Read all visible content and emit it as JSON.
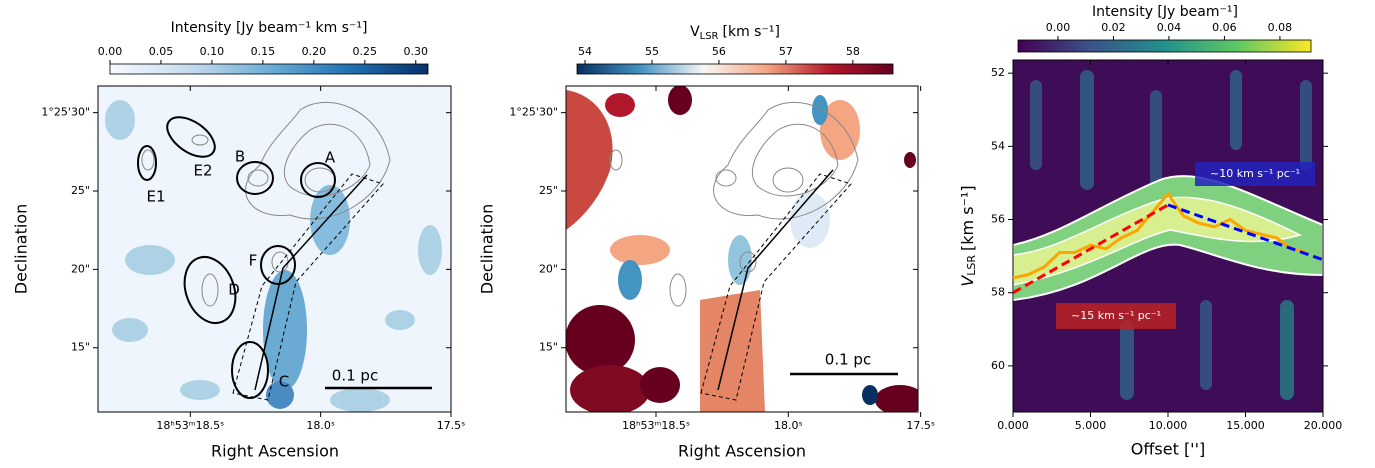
{
  "chart_data": [
    {
      "type": "map",
      "colorbar": {
        "label": "Intensity [Jy beam⁻¹ km s⁻¹]",
        "lim": [
          0,
          0.312
        ],
        "ticks": [
          {
            "value": 0,
            "label": "0.00"
          },
          {
            "value": 0.05,
            "label": "0.05"
          },
          {
            "value": 0.1,
            "label": "0.10"
          },
          {
            "value": 0.15,
            "label": "0.15"
          },
          {
            "value": 0.2,
            "label": "0.20"
          },
          {
            "value": 0.25,
            "label": "0.25"
          },
          {
            "value": 0.3,
            "label": "0.30"
          }
        ],
        "colormap": [
          "#f7fbff",
          "#c6dbef",
          "#6baed6",
          "#2171b5",
          "#08306b"
        ]
      },
      "xlabel": "Right Ascension",
      "ylabel": "Declination",
      "xlim": [
        18.854,
        17.5
      ],
      "ylim": [
        10.9,
        31.7
      ],
      "xticks": [
        {
          "value": 18.5,
          "label": "18ʰ53ᵐ18.5ˢ"
        },
        {
          "value": 18.0,
          "label": "18.0ˢ"
        },
        {
          "value": 17.5,
          "label": "17.5ˢ"
        }
      ],
      "yticks": [
        {
          "value": 30,
          "label": "1°25'30\""
        },
        {
          "value": 25,
          "label": "25\""
        },
        {
          "value": 20,
          "label": "20\""
        },
        {
          "value": 15,
          "label": "15\""
        }
      ],
      "annotations": [
        "A",
        "B",
        "C",
        "D",
        "E1",
        "E2",
        "F"
      ],
      "scalebar": "0.1 pc"
    },
    {
      "type": "map",
      "colorbar": {
        "label": {
          "symbol": "V",
          "subscript": "LSR",
          "unit": "[km s⁻¹]"
        },
        "lim": [
          53.88,
          58.6
        ],
        "ticks": [
          54,
          55,
          56,
          57,
          58
        ],
        "colormap": [
          "#053061",
          "#4393c3",
          "#f7f7f7",
          "#f4a582",
          "#b2182b",
          "#67001f"
        ]
      },
      "xlabel": "Right Ascension",
      "ylabel": "Declination",
      "xlim": [
        18.84,
        17.51
      ],
      "ylim": [
        10.9,
        31.7
      ],
      "xticks": [
        {
          "value": 18.5,
          "label": "18ʰ53ᵐ18.5ˢ"
        },
        {
          "value": 18.0,
          "label": "18.0ˢ"
        },
        {
          "value": 17.5,
          "label": "17.5ˢ"
        }
      ],
      "yticks": [
        {
          "value": 30,
          "label": "1°25'30\""
        },
        {
          "value": 25,
          "label": "25\""
        },
        {
          "value": 20,
          "label": "20\""
        },
        {
          "value": 15,
          "label": "15\""
        }
      ],
      "scalebar": "0.1 pc"
    },
    {
      "type": "line",
      "colorbar": {
        "label": "Intensity [Jy beam⁻¹]",
        "lim": [
          -0.0144,
          0.0912
        ],
        "ticks": [
          {
            "value": 0,
            "label": "0.00"
          },
          {
            "value": 0.02,
            "label": "0.02"
          },
          {
            "value": 0.04,
            "label": "0.04"
          },
          {
            "value": 0.06,
            "label": "0.06"
          },
          {
            "value": 0.08,
            "label": "0.08"
          }
        ],
        "colormap": [
          "#440154",
          "#3b528b",
          "#21918c",
          "#5ec962",
          "#fde725"
        ]
      },
      "xlabel": "Offset ['']",
      "ylabel": {
        "symbol": "V",
        "subscript": "LSR",
        "unit": "[km s⁻¹]"
      },
      "xlim": [
        0,
        20
      ],
      "ylim": [
        61.26,
        51.64
      ],
      "xticks": [
        {
          "value": 0,
          "label": "0.000"
        },
        {
          "value": 5,
          "label": "5.000"
        },
        {
          "value": 10,
          "label": "10.000"
        },
        {
          "value": 15,
          "label": "15.000"
        },
        {
          "value": 20,
          "label": "20.000"
        }
      ],
      "yticks": [
        52,
        54,
        56,
        58,
        60
      ],
      "series": [
        {
          "color": "#ffa500",
          "dash": false,
          "x": [
            0,
            1,
            2,
            3,
            4,
            5,
            6,
            7,
            8,
            9,
            10,
            11,
            12,
            13,
            14,
            15,
            16,
            17,
            18,
            19
          ],
          "values": [
            57.6,
            57.5,
            57.3,
            56.9,
            56.9,
            56.7,
            56.8,
            56.5,
            56.3,
            55.8,
            55.3,
            55.9,
            56.1,
            56.2,
            56.0,
            56.3,
            56.4,
            56.5,
            56.8,
            56.9
          ]
        },
        {
          "color": "#ff0000",
          "dash": true,
          "x": [
            0,
            10
          ],
          "values": [
            58.0,
            55.6
          ]
        },
        {
          "color": "#0000ff",
          "dash": true,
          "x": [
            10,
            20
          ],
          "values": [
            55.6,
            57.1
          ]
        }
      ],
      "annotations": [
        "~10 km s⁻¹ pc⁻¹",
        "~15 km s⁻¹ pc⁻¹"
      ]
    }
  ]
}
